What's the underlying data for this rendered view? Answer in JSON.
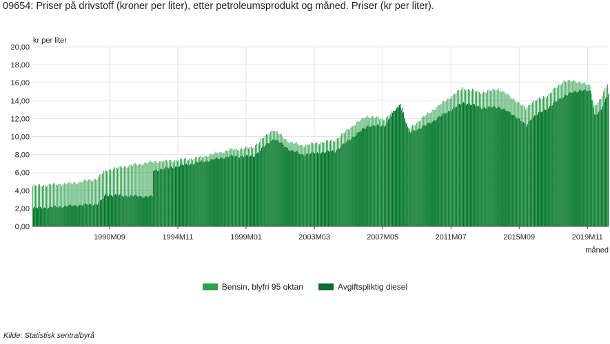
{
  "title": "09654: Priser på drivstoff (kroner per liter), etter petroleumsprodukt og måned. Priser (kr per liter).",
  "source": "Kilde:  Statistisk sentralbyrå",
  "colors": {
    "bensin": "#2ea14d",
    "diesel": "#0b6b33",
    "grid": "#e3e3e3"
  },
  "chart_data": {
    "type": "bar",
    "ylabel": "kr per liter",
    "xlabel": "måned",
    "ylim": [
      0,
      20
    ],
    "y_ticks": [
      "0,00",
      "2,00",
      "4,00",
      "6,00",
      "8,00",
      "10,00",
      "12,00",
      "14,00",
      "16,00",
      "18,00",
      "20,00"
    ],
    "x_ticks": [
      "1990M09",
      "1994M11",
      "1999M01",
      "2003M03",
      "2007M05",
      "2011M07",
      "2015M09",
      "2019M11"
    ],
    "x_start": "1986M01",
    "x_end": "2021M02",
    "grid": true,
    "legend_position": "bottom",
    "series": [
      {
        "name": "Bensin, blyfri 95 oktan",
        "anchors": [
          [
            "1986M01",
            4.5
          ],
          [
            "1988M06",
            4.8
          ],
          [
            "1989M12",
            5.3
          ],
          [
            "1990M06",
            6.2
          ],
          [
            "1991M06",
            6.6
          ],
          [
            "1993M06",
            7.2
          ],
          [
            "1994M06",
            7.3
          ],
          [
            "1996M01",
            7.6
          ],
          [
            "1998M01",
            8.5
          ],
          [
            "1999M06",
            8.8
          ],
          [
            "2000M09",
            10.8
          ],
          [
            "2001M09",
            9.4
          ],
          [
            "2002M06",
            9.0
          ],
          [
            "2004M06",
            9.6
          ],
          [
            "2005M09",
            11.4
          ],
          [
            "2006M06",
            12.3
          ],
          [
            "2007M06",
            11.9
          ],
          [
            "2008M06",
            13.4
          ],
          [
            "2008M12",
            10.8
          ],
          [
            "2010M01",
            12.4
          ],
          [
            "2011M06",
            14.3
          ],
          [
            "2012M04",
            15.4
          ],
          [
            "2013M06",
            14.9
          ],
          [
            "2014M06",
            15.3
          ],
          [
            "2015M06",
            14.1
          ],
          [
            "2016M02",
            13.1
          ],
          [
            "2016M06",
            13.8
          ],
          [
            "2017M06",
            14.6
          ],
          [
            "2018M06",
            16.2
          ],
          [
            "2019M06",
            16.1
          ],
          [
            "2020M01",
            15.6
          ],
          [
            "2020M04",
            13.4
          ],
          [
            "2020M09",
            14.2
          ],
          [
            "2021M02",
            15.9
          ]
        ]
      },
      {
        "name": "Avgiftspliktig diesel",
        "anchors": [
          [
            "1986M01",
            2.0
          ],
          [
            "1988M06",
            2.3
          ],
          [
            "1989M12",
            2.5
          ],
          [
            "1990M03",
            2.9
          ],
          [
            "1990M06",
            3.5
          ],
          [
            "1993M04",
            3.3
          ],
          [
            "1993M05",
            6.2
          ],
          [
            "1996M01",
            7.1
          ],
          [
            "1998M01",
            7.8
          ],
          [
            "1999M06",
            7.8
          ],
          [
            "2000M09",
            9.8
          ],
          [
            "2001M09",
            8.5
          ],
          [
            "2002M06",
            8.0
          ],
          [
            "2004M06",
            8.4
          ],
          [
            "2005M09",
            10.2
          ],
          [
            "2006M06",
            11.2
          ],
          [
            "2007M06",
            11.2
          ],
          [
            "2008M06",
            13.8
          ],
          [
            "2008M12",
            10.4
          ],
          [
            "2010M01",
            11.3
          ],
          [
            "2011M06",
            12.9
          ],
          [
            "2012M04",
            13.8
          ],
          [
            "2013M06",
            13.2
          ],
          [
            "2014M06",
            13.3
          ],
          [
            "2015M06",
            12.3
          ],
          [
            "2016M02",
            11.2
          ],
          [
            "2016M06",
            12.1
          ],
          [
            "2017M06",
            13.2
          ],
          [
            "2018M06",
            14.6
          ],
          [
            "2019M06",
            15.2
          ],
          [
            "2020M01",
            15.0
          ],
          [
            "2020M04",
            12.4
          ],
          [
            "2020M09",
            13.0
          ],
          [
            "2021M02",
            14.8
          ]
        ]
      }
    ]
  }
}
